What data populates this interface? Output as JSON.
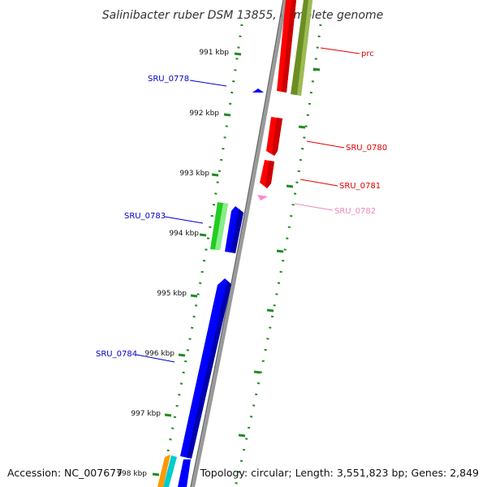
{
  "map": {
    "title": "Salinibacter ruber DSM 13855, complete genome",
    "accession": "Accession: NC_007677",
    "topology": "Topology: circular; Length: 3,551,823 bp; Genes: 2,849"
  },
  "ruler": {
    "ticks": [
      "991 kbp",
      "992 kbp",
      "993 kbp",
      "994 kbp",
      "995 kbp",
      "996 kbp",
      "997 kbp",
      "998 kbp"
    ]
  },
  "genes": [
    {
      "label": "prc",
      "strand": "forward",
      "color": "#e00000"
    },
    {
      "label": "SRU_0778",
      "strand": "reverse",
      "color": "#0000cc"
    },
    {
      "label": "SRU_0780",
      "strand": "forward",
      "color": "#e00000"
    },
    {
      "label": "SRU_0781",
      "strand": "forward",
      "color": "#e00000"
    },
    {
      "label": "SRU_0782",
      "strand": "forward",
      "color": "#ee88bb"
    },
    {
      "label": "SRU_0783",
      "strand": "reverse",
      "color": "#0000cc"
    },
    {
      "label": "SRU_0784",
      "strand": "reverse",
      "color": "#0000cc"
    }
  ],
  "colors": {
    "backbone": "#888888",
    "forward_red": "#ff0000",
    "reverse_blue": "#0000ff",
    "olive": "#6b8e23",
    "green": "#22cc22",
    "pink": "#ff88cc",
    "orange": "#ff9900",
    "cyan": "#00cccc",
    "tick_green": "#228b22"
  }
}
